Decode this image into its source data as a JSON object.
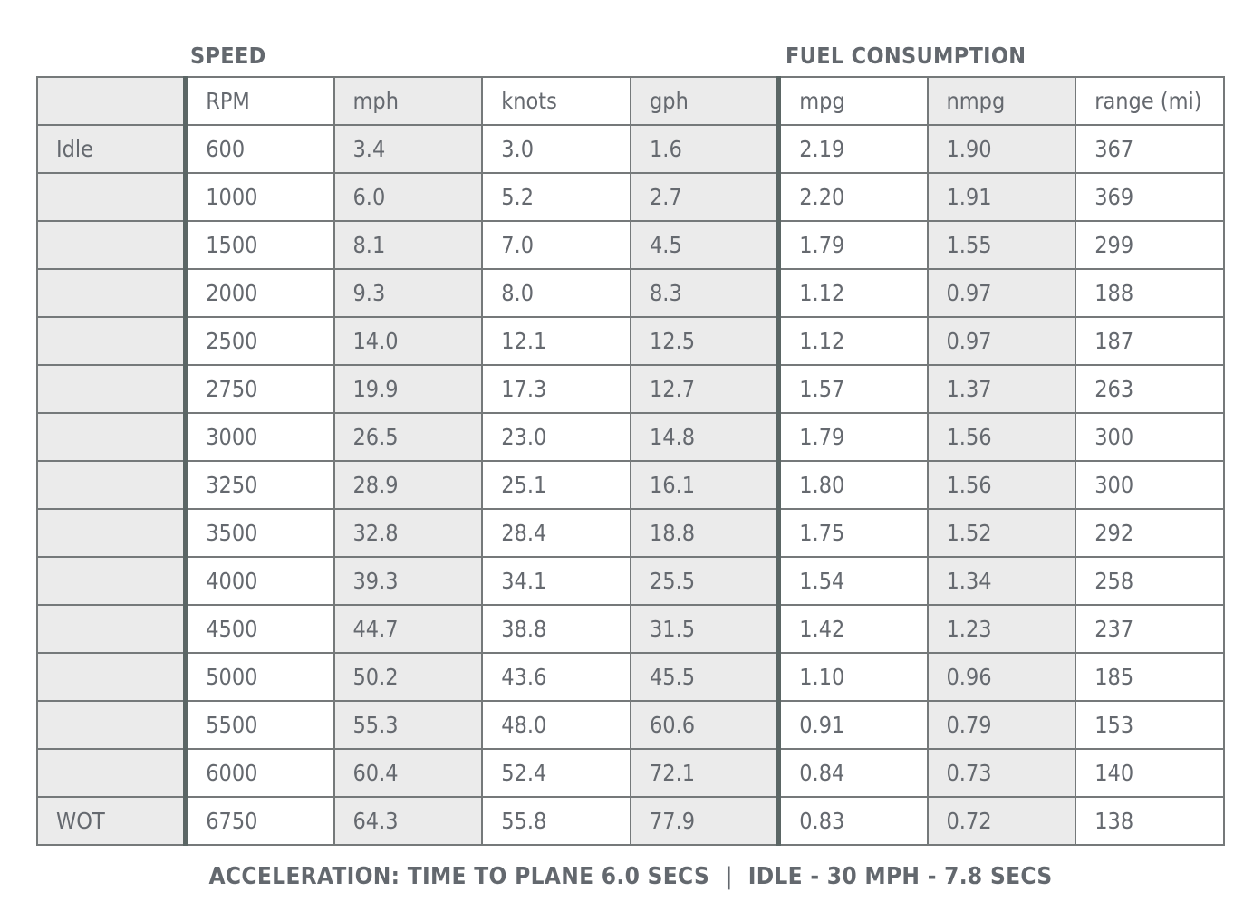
{
  "sections": {
    "speed_title": "SPEED",
    "fuel_title": "FUEL CONSUMPTION"
  },
  "footer": {
    "acceleration_note": "ACCELERATION: TIME TO PLANE 6.0 SECS  |  IDLE - 30 MPH - 7.8 SECS"
  },
  "table": {
    "header": [
      "",
      "RPM",
      "mph",
      "knots",
      "gph",
      "mpg",
      "nmpg",
      "range (mi)"
    ],
    "rows": [
      [
        "Idle",
        "600",
        "3.4",
        "3.0",
        "1.6",
        "2.19",
        "1.90",
        "367"
      ],
      [
        "",
        "1000",
        "6.0",
        "5.2",
        "2.7",
        "2.20",
        "1.91",
        "369"
      ],
      [
        "",
        "1500",
        "8.1",
        "7.0",
        "4.5",
        "1.79",
        "1.55",
        "299"
      ],
      [
        "",
        "2000",
        "9.3",
        "8.0",
        "8.3",
        "1.12",
        "0.97",
        "188"
      ],
      [
        "",
        "2500",
        "14.0",
        "12.1",
        "12.5",
        "1.12",
        "0.97",
        "187"
      ],
      [
        "",
        "2750",
        "19.9",
        "17.3",
        "12.7",
        "1.57",
        "1.37",
        "263"
      ],
      [
        "",
        "3000",
        "26.5",
        "23.0",
        "14.8",
        "1.79",
        "1.56",
        "300"
      ],
      [
        "",
        "3250",
        "28.9",
        "25.1",
        "16.1",
        "1.80",
        "1.56",
        "300"
      ],
      [
        "",
        "3500",
        "32.8",
        "28.4",
        "18.8",
        "1.75",
        "1.52",
        "292"
      ],
      [
        "",
        "4000",
        "39.3",
        "34.1",
        "25.5",
        "1.54",
        "1.34",
        "258"
      ],
      [
        "",
        "4500",
        "44.7",
        "38.8",
        "31.5",
        "1.42",
        "1.23",
        "237"
      ],
      [
        "",
        "5000",
        "50.2",
        "43.6",
        "45.5",
        "1.10",
        "0.96",
        "185"
      ],
      [
        "",
        "5500",
        "55.3",
        "48.0",
        "60.6",
        "0.91",
        "0.79",
        "153"
      ],
      [
        "",
        "6000",
        "60.4",
        "52.4",
        "72.1",
        "0.84",
        "0.73",
        "140"
      ],
      [
        "WOT",
        "6750",
        "64.3",
        "55.8",
        "77.9",
        "0.83",
        "0.72",
        "138"
      ]
    ]
  },
  "colors": {
    "text": "#65696f",
    "shaded_cell": "#ebebeb",
    "grid_line": "#75797a",
    "section_divider": "#5b6665"
  },
  "chart_data": {
    "type": "table",
    "title": "Boat performance: speed and fuel consumption by RPM",
    "section_groups": [
      {
        "name": "SPEED",
        "columns": [
          "RPM",
          "mph",
          "knots"
        ]
      },
      {
        "name": "FUEL CONSUMPTION",
        "columns": [
          "mpg",
          "nmpg",
          "range (mi)"
        ]
      }
    ],
    "columns": [
      "throttle",
      "RPM",
      "mph",
      "knots",
      "gph",
      "mpg",
      "nmpg",
      "range_mi"
    ],
    "rows": [
      {
        "throttle": "Idle",
        "RPM": 600,
        "mph": 3.4,
        "knots": 3.0,
        "gph": 1.6,
        "mpg": 2.19,
        "nmpg": 1.9,
        "range_mi": 367
      },
      {
        "throttle": "",
        "RPM": 1000,
        "mph": 6.0,
        "knots": 5.2,
        "gph": 2.7,
        "mpg": 2.2,
        "nmpg": 1.91,
        "range_mi": 369
      },
      {
        "throttle": "",
        "RPM": 1500,
        "mph": 8.1,
        "knots": 7.0,
        "gph": 4.5,
        "mpg": 1.79,
        "nmpg": 1.55,
        "range_mi": 299
      },
      {
        "throttle": "",
        "RPM": 2000,
        "mph": 9.3,
        "knots": 8.0,
        "gph": 8.3,
        "mpg": 1.12,
        "nmpg": 0.97,
        "range_mi": 188
      },
      {
        "throttle": "",
        "RPM": 2500,
        "mph": 14.0,
        "knots": 12.1,
        "gph": 12.5,
        "mpg": 1.12,
        "nmpg": 0.97,
        "range_mi": 187
      },
      {
        "throttle": "",
        "RPM": 2750,
        "mph": 19.9,
        "knots": 17.3,
        "gph": 12.7,
        "mpg": 1.57,
        "nmpg": 1.37,
        "range_mi": 263
      },
      {
        "throttle": "",
        "RPM": 3000,
        "mph": 26.5,
        "knots": 23.0,
        "gph": 14.8,
        "mpg": 1.79,
        "nmpg": 1.56,
        "range_mi": 300
      },
      {
        "throttle": "",
        "RPM": 3250,
        "mph": 28.9,
        "knots": 25.1,
        "gph": 16.1,
        "mpg": 1.8,
        "nmpg": 1.56,
        "range_mi": 300
      },
      {
        "throttle": "",
        "RPM": 3500,
        "mph": 32.8,
        "knots": 28.4,
        "gph": 18.8,
        "mpg": 1.75,
        "nmpg": 1.52,
        "range_mi": 292
      },
      {
        "throttle": "",
        "RPM": 4000,
        "mph": 39.3,
        "knots": 34.1,
        "gph": 25.5,
        "mpg": 1.54,
        "nmpg": 1.34,
        "range_mi": 258
      },
      {
        "throttle": "",
        "RPM": 4500,
        "mph": 44.7,
        "knots": 38.8,
        "gph": 31.5,
        "mpg": 1.42,
        "nmpg": 1.23,
        "range_mi": 237
      },
      {
        "throttle": "",
        "RPM": 5000,
        "mph": 50.2,
        "knots": 43.6,
        "gph": 45.5,
        "mpg": 1.1,
        "nmpg": 0.96,
        "range_mi": 185
      },
      {
        "throttle": "",
        "RPM": 5500,
        "mph": 55.3,
        "knots": 48.0,
        "gph": 60.6,
        "mpg": 0.91,
        "nmpg": 0.79,
        "range_mi": 153
      },
      {
        "throttle": "",
        "RPM": 6000,
        "mph": 60.4,
        "knots": 52.4,
        "gph": 72.1,
        "mpg": 0.84,
        "nmpg": 0.73,
        "range_mi": 140
      },
      {
        "throttle": "WOT",
        "RPM": 6750,
        "mph": 64.3,
        "knots": 55.8,
        "gph": 77.9,
        "mpg": 0.83,
        "nmpg": 0.72,
        "range_mi": 138
      }
    ],
    "annotations": [
      "ACCELERATION: TIME TO PLANE 6.0 SECS | IDLE - 30 MPH - 7.8 SECS"
    ]
  }
}
